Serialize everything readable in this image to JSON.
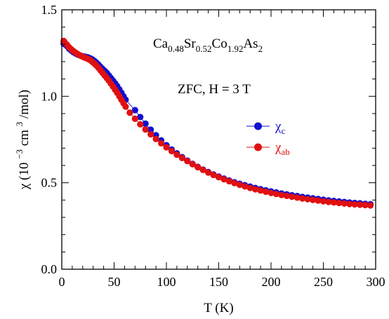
{
  "chart_data": {
    "type": "scatter",
    "xlabel": "T (K)",
    "ylabel": {
      "prefix": "χ (10",
      "exp1": "−3",
      "mid": " cm",
      "exp2": "3",
      "suffix": "/mol)"
    },
    "xlim": [
      0,
      300
    ],
    "ylim": [
      0.0,
      1.5
    ],
    "xticks": [
      0,
      50,
      100,
      150,
      200,
      250,
      300
    ],
    "yticks": [
      0.0,
      0.5,
      1.0,
      1.5
    ],
    "xtick_labels": [
      "0",
      "50",
      "100",
      "150",
      "200",
      "250",
      "300"
    ],
    "ytick_labels": [
      "0.0",
      "0.5",
      "1.0",
      "1.5"
    ],
    "grid": false,
    "legend_position": "right",
    "formula": [
      {
        "text": "Ca",
        "sub": "0.48"
      },
      {
        "text": "Sr",
        "sub": "0.52"
      },
      {
        "text": "Co",
        "sub": "1.92"
      },
      {
        "text": "As",
        "sub": "2"
      }
    ],
    "condition": "ZFC, H = 3 T",
    "series": [
      {
        "name": "χc",
        "name_base": "χ",
        "name_sub": "c",
        "color": "#1010d0",
        "points": [
          [
            1.8,
            1.305
          ],
          [
            3,
            1.3
          ],
          [
            5,
            1.29
          ],
          [
            7,
            1.275
          ],
          [
            9,
            1.265
          ],
          [
            11,
            1.255
          ],
          [
            13,
            1.248
          ],
          [
            15,
            1.242
          ],
          [
            17,
            1.237
          ],
          [
            19,
            1.233
          ],
          [
            21,
            1.23
          ],
          [
            23,
            1.228
          ],
          [
            25,
            1.225
          ],
          [
            27,
            1.22
          ],
          [
            29,
            1.214
          ],
          [
            31,
            1.205
          ],
          [
            33,
            1.195
          ],
          [
            35,
            1.183
          ],
          [
            37,
            1.17
          ],
          [
            39,
            1.158
          ],
          [
            41,
            1.147
          ],
          [
            43,
            1.135
          ],
          [
            45,
            1.12
          ],
          [
            47,
            1.105
          ],
          [
            49,
            1.09
          ],
          [
            51,
            1.075
          ],
          [
            53,
            1.058
          ],
          [
            55,
            1.04
          ],
          [
            57,
            1.02
          ],
          [
            59,
            1.0
          ],
          [
            61,
            0.98
          ],
          [
            70,
            0.92
          ],
          [
            75,
            0.88
          ],
          [
            80,
            0.842
          ],
          [
            85,
            0.807
          ],
          [
            90,
            0.775
          ],
          [
            95,
            0.745
          ],
          [
            100,
            0.717
          ],
          [
            105,
            0.692
          ],
          [
            110,
            0.67
          ],
          [
            115,
            0.648
          ],
          [
            120,
            0.628
          ],
          [
            125,
            0.609
          ],
          [
            130,
            0.592
          ],
          [
            135,
            0.576
          ],
          [
            140,
            0.562
          ],
          [
            145,
            0.548
          ],
          [
            150,
            0.536
          ],
          [
            155,
            0.524
          ],
          [
            160,
            0.513
          ],
          [
            165,
            0.503
          ],
          [
            170,
            0.494
          ],
          [
            175,
            0.486
          ],
          [
            180,
            0.478
          ],
          [
            185,
            0.47
          ],
          [
            190,
            0.463
          ],
          [
            195,
            0.456
          ],
          [
            200,
            0.45
          ],
          [
            205,
            0.444
          ],
          [
            210,
            0.438
          ],
          [
            215,
            0.433
          ],
          [
            220,
            0.428
          ],
          [
            225,
            0.423
          ],
          [
            230,
            0.418
          ],
          [
            235,
            0.414
          ],
          [
            240,
            0.41
          ],
          [
            245,
            0.406
          ],
          [
            250,
            0.402
          ],
          [
            255,
            0.398
          ],
          [
            260,
            0.395
          ],
          [
            265,
            0.392
          ],
          [
            270,
            0.389
          ],
          [
            275,
            0.386
          ],
          [
            280,
            0.383
          ],
          [
            285,
            0.381
          ],
          [
            290,
            0.378
          ],
          [
            295,
            0.376
          ]
        ]
      },
      {
        "name": "χab",
        "name_base": "χ",
        "name_sub": "ab",
        "color": "#e01010",
        "points": [
          [
            1.8,
            1.32
          ],
          [
            3,
            1.31
          ],
          [
            5,
            1.298
          ],
          [
            7,
            1.283
          ],
          [
            9,
            1.272
          ],
          [
            11,
            1.262
          ],
          [
            13,
            1.253
          ],
          [
            15,
            1.245
          ],
          [
            17,
            1.238
          ],
          [
            19,
            1.232
          ],
          [
            21,
            1.226
          ],
          [
            23,
            1.221
          ],
          [
            25,
            1.216
          ],
          [
            27,
            1.21
          ],
          [
            29,
            1.2
          ],
          [
            31,
            1.19
          ],
          [
            33,
            1.178
          ],
          [
            35,
            1.165
          ],
          [
            37,
            1.15
          ],
          [
            39,
            1.135
          ],
          [
            41,
            1.12
          ],
          [
            43,
            1.105
          ],
          [
            45,
            1.09
          ],
          [
            47,
            1.073
          ],
          [
            49,
            1.056
          ],
          [
            51,
            1.038
          ],
          [
            53,
            1.02
          ],
          [
            55,
            1.0
          ],
          [
            57,
            0.98
          ],
          [
            59,
            0.96
          ],
          [
            61,
            0.94
          ],
          [
            65,
            0.905
          ],
          [
            70,
            0.87
          ],
          [
            75,
            0.838
          ],
          [
            80,
            0.808
          ],
          [
            85,
            0.78
          ],
          [
            90,
            0.753
          ],
          [
            95,
            0.728
          ],
          [
            100,
            0.705
          ],
          [
            105,
            0.683
          ],
          [
            110,
            0.662
          ],
          [
            115,
            0.643
          ],
          [
            120,
            0.625
          ],
          [
            125,
            0.607
          ],
          [
            130,
            0.59
          ],
          [
            135,
            0.574
          ],
          [
            140,
            0.559
          ],
          [
            145,
            0.545
          ],
          [
            150,
            0.532
          ],
          [
            155,
            0.52
          ],
          [
            160,
            0.509
          ],
          [
            165,
            0.498
          ],
          [
            170,
            0.488
          ],
          [
            175,
            0.479
          ],
          [
            180,
            0.47
          ],
          [
            185,
            0.462
          ],
          [
            190,
            0.455
          ],
          [
            195,
            0.448
          ],
          [
            200,
            0.441
          ],
          [
            205,
            0.435
          ],
          [
            210,
            0.429
          ],
          [
            215,
            0.424
          ],
          [
            220,
            0.419
          ],
          [
            225,
            0.414
          ],
          [
            230,
            0.409
          ],
          [
            235,
            0.405
          ],
          [
            240,
            0.401
          ],
          [
            245,
            0.397
          ],
          [
            250,
            0.393
          ],
          [
            255,
            0.389
          ],
          [
            260,
            0.386
          ],
          [
            265,
            0.383
          ],
          [
            270,
            0.38
          ],
          [
            275,
            0.377
          ],
          [
            280,
            0.375
          ],
          [
            285,
            0.373
          ],
          [
            290,
            0.371
          ],
          [
            295,
            0.369
          ]
        ]
      }
    ]
  }
}
